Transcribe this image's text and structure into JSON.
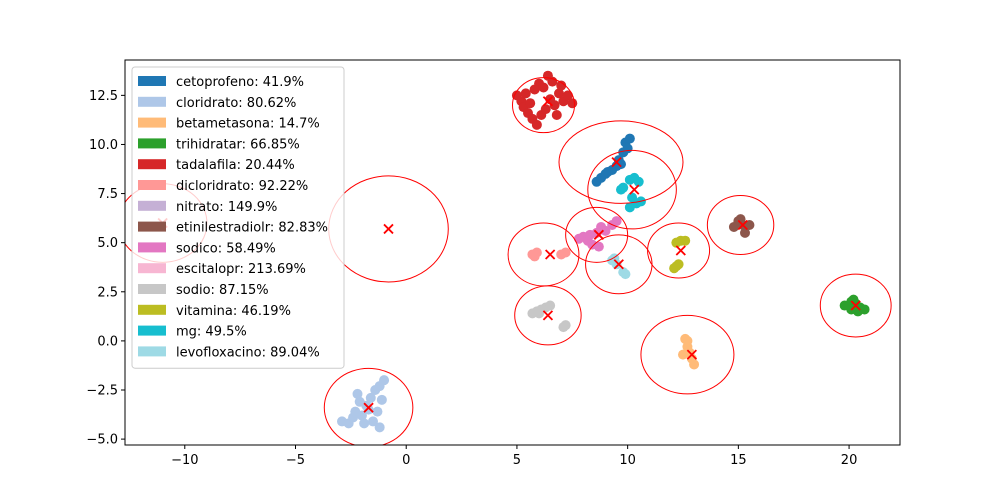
{
  "chart_data": {
    "type": "scatter",
    "title": "",
    "xlabel": "",
    "ylabel": "",
    "xlim": [
      -12.7,
      22.3
    ],
    "ylim": [
      -5.3,
      14.3
    ],
    "xticks": [
      -10,
      -5,
      0,
      5,
      10,
      15,
      20
    ],
    "yticks": [
      -5.0,
      -2.5,
      0.0,
      2.5,
      5.0,
      7.5,
      10.0,
      12.5
    ],
    "xtick_labels": [
      "−10",
      "−5",
      "0",
      "5",
      "10",
      "15",
      "20"
    ],
    "ytick_labels": [
      "−5.0",
      "−2.5",
      "0.0",
      "2.5",
      "5.0",
      "7.5",
      "10.0",
      "12.5"
    ],
    "grid": false,
    "legend_position": "upper-left",
    "series": [
      {
        "name": "cetoprofeno",
        "label": "cetoprofeno: 41.9%",
        "color": "#1f77b4",
        "points": [
          [
            8.6,
            8.1
          ],
          [
            8.8,
            8.3
          ],
          [
            9.0,
            8.5
          ],
          [
            9.3,
            8.7
          ],
          [
            9.6,
            9.2
          ],
          [
            9.8,
            9.6
          ],
          [
            9.9,
            10.1
          ],
          [
            10.1,
            10.3
          ],
          [
            10.0,
            9.8
          ],
          [
            9.7,
            9.0
          ],
          [
            9.5,
            8.9
          ],
          [
            9.1,
            8.6
          ]
        ],
        "centroid": [
          9.5,
          9.1
        ],
        "circle": {
          "center": [
            9.7,
            9.1
          ],
          "rx": 2.8,
          "ry": 2.1
        }
      },
      {
        "name": "cloridrato",
        "label": "cloridrato: 80.62%",
        "color": "#aec7e8",
        "points": [
          [
            -2.9,
            -4.1
          ],
          [
            -2.6,
            -4.2
          ],
          [
            -2.3,
            -3.6
          ],
          [
            -2.0,
            -3.8
          ],
          [
            -1.8,
            -3.3
          ],
          [
            -1.6,
            -2.9
          ],
          [
            -1.4,
            -2.5
          ],
          [
            -1.2,
            -2.3
          ],
          [
            -1.0,
            -2.0
          ],
          [
            -1.1,
            -3.0
          ],
          [
            -1.3,
            -3.6
          ],
          [
            -1.5,
            -4.1
          ],
          [
            -1.2,
            -4.4
          ],
          [
            -2.2,
            -2.7
          ],
          [
            -1.9,
            -4.2
          ],
          [
            -2.4,
            -3.9
          ],
          [
            -1.7,
            -3.5
          ],
          [
            -2.1,
            -3.1
          ]
        ],
        "centroid": [
          -1.7,
          -3.4
        ],
        "circle": {
          "center": [
            -1.7,
            -3.4
          ],
          "rx": 2.0,
          "ry": 2.0
        }
      },
      {
        "name": "betametasona",
        "label": "betametasona: 14.7%",
        "color": "#ffbb78",
        "points": [
          [
            12.6,
            0.1
          ],
          [
            12.7,
            -0.3
          ],
          [
            12.8,
            -0.6
          ],
          [
            12.9,
            -0.9
          ],
          [
            13.0,
            -1.2
          ],
          [
            12.5,
            -0.7
          ],
          [
            12.7,
            0.0
          ]
        ],
        "centroid": [
          12.9,
          -0.7
        ],
        "circle": {
          "center": [
            12.7,
            -0.7
          ],
          "rx": 2.1,
          "ry": 2.0
        }
      },
      {
        "name": "trihidratar",
        "label": "trihidratar: 66.85%",
        "color": "#2ca02c",
        "points": [
          [
            19.8,
            1.8
          ],
          [
            20.1,
            2.0
          ],
          [
            20.3,
            1.9
          ],
          [
            20.5,
            1.7
          ],
          [
            20.7,
            1.6
          ],
          [
            20.1,
            1.6
          ],
          [
            20.4,
            1.5
          ],
          [
            20.2,
            2.1
          ]
        ],
        "centroid": [
          20.3,
          1.8
        ],
        "circle": {
          "center": [
            20.3,
            1.8
          ],
          "rx": 1.6,
          "ry": 1.6
        }
      },
      {
        "name": "tadalafila",
        "label": "tadalafila: 20.44%",
        "color": "#d62728",
        "points": [
          [
            5.0,
            12.5
          ],
          [
            5.2,
            12.2
          ],
          [
            5.3,
            11.9
          ],
          [
            5.5,
            11.6
          ],
          [
            5.7,
            11.3
          ],
          [
            5.9,
            11.0
          ],
          [
            6.1,
            11.5
          ],
          [
            6.3,
            11.8
          ],
          [
            6.5,
            12.3
          ],
          [
            6.7,
            12.0
          ],
          [
            6.9,
            12.6
          ],
          [
            7.1,
            12.2
          ],
          [
            7.3,
            12.5
          ],
          [
            7.0,
            13.0
          ],
          [
            6.6,
            13.2
          ],
          [
            6.4,
            13.5
          ],
          [
            6.0,
            13.1
          ],
          [
            5.8,
            12.8
          ],
          [
            5.4,
            12.6
          ],
          [
            6.2,
            12.9
          ],
          [
            6.8,
            11.5
          ],
          [
            7.5,
            12.1
          ],
          [
            5.6,
            12.1
          ]
        ],
        "centroid": [
          6.4,
          12.2
        ],
        "circle": {
          "center": [
            6.2,
            12.0
          ],
          "rx": 1.4,
          "ry": 1.4
        }
      },
      {
        "name": "dicloridrato",
        "label": "dicloridrato: 92.22%",
        "color": "#ff9896",
        "points": [
          [
            5.7,
            4.4
          ],
          [
            5.9,
            4.5
          ],
          [
            7.0,
            4.4
          ],
          [
            7.2,
            4.5
          ],
          [
            5.8,
            4.3
          ]
        ],
        "centroid": [
          6.5,
          4.4
        ],
        "circle": {
          "center": [
            6.2,
            4.4
          ],
          "rx": 1.6,
          "ry": 1.6
        }
      },
      {
        "name": "nitrato",
        "label": "nitrato: 149.9%",
        "color": "#c5b0d5",
        "points": [],
        "centroid": [
          -0.8,
          5.7
        ],
        "circle": {
          "center": [
            -0.8,
            5.7
          ],
          "rx": 2.7,
          "ry": 2.7
        }
      },
      {
        "name": "etinilestradiolr",
        "label": "etinilestradiolr: 82.83%",
        "color": "#8c564b",
        "points": [
          [
            14.8,
            5.8
          ],
          [
            15.0,
            6.1
          ],
          [
            15.2,
            5.9
          ],
          [
            15.3,
            5.5
          ],
          [
            15.5,
            5.9
          ],
          [
            15.1,
            6.2
          ]
        ],
        "centroid": [
          15.2,
          5.9
        ],
        "circle": {
          "center": [
            15.1,
            5.9
          ],
          "rx": 1.5,
          "ry": 1.5
        }
      },
      {
        "name": "sodico",
        "label": "sodico: 58.49%",
        "color": "#e377c2",
        "points": [
          [
            8.0,
            5.3
          ],
          [
            8.2,
            5.1
          ],
          [
            8.4,
            4.9
          ],
          [
            8.6,
            5.5
          ],
          [
            8.8,
            5.8
          ],
          [
            9.0,
            5.6
          ],
          [
            9.3,
            5.9
          ],
          [
            9.5,
            6.1
          ],
          [
            8.3,
            5.4
          ],
          [
            7.8,
            5.2
          ],
          [
            8.7,
            4.8
          ]
        ],
        "centroid": [
          8.7,
          5.4
        ],
        "circle": {
          "center": [
            8.6,
            5.4
          ],
          "rx": 1.4,
          "ry": 1.4
        }
      },
      {
        "name": "escitalopr",
        "label": "escitalopr: 213.69%",
        "color": "#f7b6d2",
        "points": [],
        "centroid": [
          -11.0,
          6.0
        ],
        "circle": {
          "center": [
            -11.0,
            6.0
          ],
          "rx": 2.0,
          "ry": 2.0
        }
      },
      {
        "name": "sodio",
        "label": "sodio: 87.15%",
        "color": "#c7c7c7",
        "points": [
          [
            5.7,
            1.4
          ],
          [
            5.9,
            1.5
          ],
          [
            6.1,
            1.6
          ],
          [
            6.3,
            1.7
          ],
          [
            6.5,
            1.8
          ],
          [
            7.1,
            0.7
          ],
          [
            7.2,
            0.8
          ],
          [
            6.0,
            1.4
          ]
        ],
        "centroid": [
          6.4,
          1.3
        ],
        "circle": {
          "center": [
            6.4,
            1.3
          ],
          "rx": 1.5,
          "ry": 1.5
        }
      },
      {
        "name": "vitamina",
        "label": "vitamina: 46.19%",
        "color": "#bcbd22",
        "points": [
          [
            12.2,
            5.0
          ],
          [
            12.4,
            5.1
          ],
          [
            12.6,
            5.1
          ],
          [
            12.2,
            3.8
          ],
          [
            12.3,
            3.9
          ],
          [
            12.1,
            3.7
          ]
        ],
        "centroid": [
          12.4,
          4.6
        ],
        "circle": {
          "center": [
            12.3,
            4.6
          ],
          "rx": 1.4,
          "ry": 1.4
        }
      },
      {
        "name": "mg",
        "label": "mg: 49.5%",
        "color": "#17becf",
        "points": [
          [
            9.8,
            7.8
          ],
          [
            10.1,
            8.2
          ],
          [
            10.3,
            8.3
          ],
          [
            10.5,
            8.1
          ],
          [
            10.2,
            7.3
          ],
          [
            10.4,
            7.0
          ],
          [
            10.6,
            7.1
          ],
          [
            10.1,
            6.8
          ],
          [
            9.7,
            7.7
          ]
        ],
        "centroid": [
          10.3,
          7.7
        ],
        "circle": {
          "center": [
            10.2,
            7.7
          ],
          "rx": 2.0,
          "ry": 2.0
        }
      },
      {
        "name": "levofloxacino",
        "label": "levofloxacino: 89.04%",
        "color": "#9edae5",
        "points": [
          [
            9.3,
            4.1
          ],
          [
            9.5,
            3.9
          ],
          [
            9.8,
            3.5
          ],
          [
            9.9,
            3.4
          ],
          [
            9.4,
            4.2
          ]
        ],
        "centroid": [
          9.6,
          3.9
        ],
        "circle": {
          "center": [
            9.6,
            3.9
          ],
          "rx": 1.5,
          "ry": 1.5
        }
      }
    ]
  }
}
